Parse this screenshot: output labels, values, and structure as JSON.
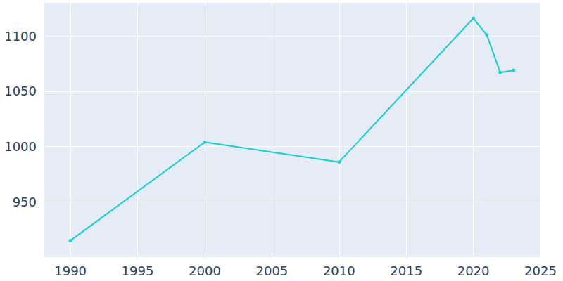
{
  "chart_data": {
    "type": "line",
    "x": [
      1990,
      2000,
      2010,
      2020,
      2021,
      2022,
      2023
    ],
    "values": [
      915,
      1004,
      986,
      1116,
      1101,
      1067,
      1069
    ],
    "color": "#17cfcf",
    "marker": "circle",
    "xlim": [
      1988,
      2025
    ],
    "xticks": [
      1990,
      1995,
      2000,
      2005,
      2010,
      2015,
      2020,
      2025
    ],
    "ylim": [
      900,
      1130
    ],
    "yticks": [
      950,
      1000,
      1050,
      1100
    ],
    "grid": true
  }
}
